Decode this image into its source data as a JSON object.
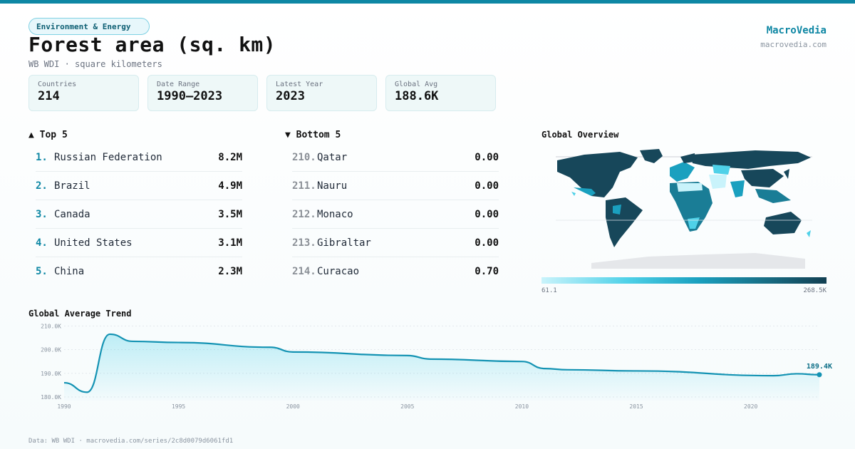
{
  "header": {
    "tag": "Environment & Energy",
    "title": "Forest area (sq. km)",
    "subtitle": "WB WDI · square kilometers",
    "brand": "MacroVedia",
    "brand_url": "macrovedia.com"
  },
  "stats": [
    {
      "label": "Countries",
      "value": "214"
    },
    {
      "label": "Date Range",
      "value": "1990–2023"
    },
    {
      "label": "Latest Year",
      "value": "2023"
    },
    {
      "label": "Global Avg",
      "value": "188.6K"
    }
  ],
  "top5": {
    "heading": "▲ Top 5",
    "items": [
      {
        "rank": "1.",
        "name": "Russian Federation",
        "value": "8.2M"
      },
      {
        "rank": "2.",
        "name": "Brazil",
        "value": "4.9M"
      },
      {
        "rank": "3.",
        "name": "Canada",
        "value": "3.5M"
      },
      {
        "rank": "4.",
        "name": "United States",
        "value": "3.1M"
      },
      {
        "rank": "5.",
        "name": "China",
        "value": "2.3M"
      }
    ]
  },
  "bottom5": {
    "heading": "▼ Bottom 5",
    "items": [
      {
        "rank": "210.",
        "name": "Qatar",
        "value": "0.00"
      },
      {
        "rank": "211.",
        "name": "Nauru",
        "value": "0.00"
      },
      {
        "rank": "212.",
        "name": "Monaco",
        "value": "0.00"
      },
      {
        "rank": "213.",
        "name": "Gibraltar",
        "value": "0.00"
      },
      {
        "rank": "214.",
        "name": "Curacao",
        "value": "0.70"
      }
    ]
  },
  "map": {
    "title": "Global Overview",
    "scale_min": "61.1",
    "scale_max": "268.5K",
    "colors": {
      "low": "#c9f3fb",
      "mid": "#1aa0bf",
      "high": "#123f52",
      "no_data": "#e5e7ea"
    }
  },
  "trend": {
    "title": "Global Average Trend",
    "last_label": "189.4K"
  },
  "colors": {
    "accent": "#0e87a4",
    "line": "#1493b3"
  },
  "footer": "Data: WB WDI · macrovedia.com/series/2c8d0079d6061fd1",
  "chart_data": {
    "type": "area",
    "title": "Global Average Trend",
    "x": [
      1990,
      1991,
      1992,
      1993,
      1995,
      1999,
      2000,
      2005,
      2006,
      2010,
      2011,
      2012,
      2015,
      2021,
      2022,
      2023
    ],
    "values": [
      186.0,
      182.0,
      206.5,
      203.5,
      203.0,
      201.0,
      199.0,
      197.5,
      196.0,
      195.0,
      192.0,
      191.5,
      191.0,
      189.0,
      189.8,
      189.4
    ],
    "ylim": [
      178.5,
      211
    ],
    "y_ticks": [
      "210.0K",
      "200.0K",
      "190.0K",
      "180.0K"
    ],
    "y_tick_values": [
      210,
      200,
      190,
      180
    ],
    "x_ticks": [
      1990,
      1995,
      2000,
      2005,
      2010,
      2015,
      2020
    ],
    "xlim": [
      1990,
      2023
    ],
    "grid": true
  }
}
